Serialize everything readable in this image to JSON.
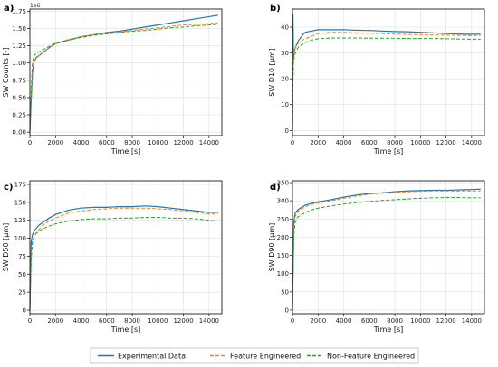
{
  "chart_data": [
    {
      "panel": "a)",
      "type": "line",
      "xlabel": "Time [s]",
      "ylabel": "SW Counts [-]",
      "multiplier": "1e6",
      "xlim": [
        0,
        15000
      ],
      "ylim": [
        -0.05,
        1.78
      ],
      "xticks": [
        0,
        2000,
        4000,
        6000,
        8000,
        10000,
        12000,
        14000
      ],
      "yticks": [
        0.0,
        0.25,
        0.5,
        0.75,
        1.0,
        1.25,
        1.5,
        1.75
      ],
      "ytick_labels": [
        "0.00",
        "0.25",
        "0.50",
        "0.75",
        "1.00",
        "1.25",
        "1.50",
        "1.75"
      ],
      "grid": true,
      "series": [
        {
          "name": "Experimental Data",
          "x": [
            0,
            100,
            200,
            300,
            500,
            800,
            1000,
            1500,
            2000,
            3000,
            4000,
            5000,
            6000,
            7000,
            8000,
            9000,
            10000,
            11000,
            12000,
            13000,
            14000,
            14700
          ],
          "y": [
            0.0,
            0.45,
            0.85,
            1.0,
            1.08,
            1.12,
            1.15,
            1.22,
            1.28,
            1.33,
            1.38,
            1.41,
            1.44,
            1.46,
            1.49,
            1.52,
            1.55,
            1.58,
            1.61,
            1.64,
            1.67,
            1.69
          ]
        },
        {
          "name": "Feature Engineered",
          "x": [
            0,
            100,
            200,
            300,
            500,
            800,
            1000,
            1500,
            2000,
            3000,
            4000,
            5000,
            6000,
            7000,
            8000,
            9000,
            10000,
            11000,
            12000,
            13000,
            14000,
            14700
          ],
          "y": [
            0.0,
            0.5,
            0.88,
            1.0,
            1.07,
            1.12,
            1.15,
            1.22,
            1.28,
            1.34,
            1.38,
            1.41,
            1.43,
            1.45,
            1.47,
            1.49,
            1.51,
            1.53,
            1.55,
            1.56,
            1.57,
            1.58
          ]
        },
        {
          "name": "Non-Feature Engineered",
          "x": [
            0,
            100,
            200,
            300,
            500,
            800,
            1000,
            1500,
            2000,
            3000,
            4000,
            5000,
            6000,
            7000,
            8000,
            9000,
            10000,
            11000,
            12000,
            13000,
            14000,
            14700
          ],
          "y": [
            0.0,
            0.6,
            1.0,
            1.1,
            1.14,
            1.17,
            1.19,
            1.24,
            1.29,
            1.33,
            1.37,
            1.4,
            1.42,
            1.44,
            1.46,
            1.47,
            1.49,
            1.51,
            1.52,
            1.54,
            1.55,
            1.56
          ]
        }
      ]
    },
    {
      "panel": "b)",
      "type": "line",
      "xlabel": "Time [s]",
      "ylabel": "SW D10 [µm]",
      "xlim": [
        0,
        15000
      ],
      "ylim": [
        -2,
        47
      ],
      "xticks": [
        0,
        2000,
        4000,
        6000,
        8000,
        10000,
        12000,
        14000
      ],
      "yticks": [
        0,
        10,
        20,
        30,
        40
      ],
      "ytick_labels": [
        "0",
        "10",
        "20",
        "30",
        "40"
      ],
      "grid": true,
      "series": [
        {
          "name": "Experimental Data",
          "x": [
            0,
            40,
            80,
            150,
            300,
            500,
            800,
            1000,
            1500,
            2000,
            3000,
            4000,
            5000,
            6000,
            7000,
            8000,
            9000,
            10000,
            11000,
            12000,
            13000,
            14000,
            14700
          ],
          "y": [
            0,
            45,
            28,
            31,
            33,
            35,
            37,
            38,
            38.5,
            39,
            39,
            39,
            38.8,
            38.7,
            38.5,
            38.3,
            38.2,
            38.0,
            37.8,
            37.5,
            37.3,
            37.2,
            37.3
          ]
        },
        {
          "name": "Feature Engineered",
          "x": [
            0,
            40,
            80,
            150,
            300,
            500,
            800,
            1000,
            1500,
            2000,
            3000,
            4000,
            5000,
            6000,
            7000,
            8000,
            9000,
            10000,
            11000,
            12000,
            13000,
            14000,
            14700
          ],
          "y": [
            0,
            20,
            28,
            31,
            33,
            34,
            35,
            35.5,
            36.5,
            37.5,
            38,
            38,
            37.8,
            37.7,
            37.5,
            37.3,
            37.2,
            37.1,
            37.0,
            36.9,
            36.8,
            36.7,
            36.8
          ]
        },
        {
          "name": "Non-Feature Engineered",
          "x": [
            0,
            40,
            80,
            150,
            300,
            500,
            800,
            1000,
            1500,
            2000,
            3000,
            4000,
            5000,
            6000,
            7000,
            8000,
            9000,
            10000,
            11000,
            12000,
            13000,
            14000,
            14700
          ],
          "y": [
            0,
            18,
            26,
            29,
            31,
            32.5,
            33.5,
            34,
            35,
            35.5,
            35.8,
            35.8,
            35.8,
            35.7,
            35.7,
            35.7,
            35.6,
            35.6,
            35.6,
            35.5,
            35.4,
            35.3,
            35.3
          ]
        }
      ]
    },
    {
      "panel": "c)",
      "type": "line",
      "xlabel": "Time [s]",
      "ylabel": "SW D50 [µm]",
      "xlim": [
        0,
        15000
      ],
      "ylim": [
        -5,
        180
      ],
      "xticks": [
        0,
        2000,
        4000,
        6000,
        8000,
        10000,
        12000,
        14000
      ],
      "yticks": [
        0,
        25,
        50,
        75,
        100,
        125,
        150,
        175
      ],
      "ytick_labels": [
        "0",
        "25",
        "50",
        "75",
        "100",
        "125",
        "150",
        "175"
      ],
      "grid": true,
      "series": [
        {
          "name": "Experimental Data",
          "x": [
            0,
            100,
            200,
            400,
            700,
            1000,
            1500,
            2000,
            3000,
            4000,
            5000,
            6000,
            7000,
            8000,
            9000,
            10000,
            11000,
            12000,
            13000,
            14000,
            14700
          ],
          "y": [
            0,
            95,
            105,
            112,
            118,
            122,
            128,
            133,
            139,
            142,
            143,
            143,
            144,
            144,
            145,
            144,
            142,
            140,
            138,
            136,
            136
          ]
        },
        {
          "name": "Feature Engineered",
          "x": [
            0,
            100,
            200,
            400,
            700,
            1000,
            1500,
            2000,
            3000,
            4000,
            5000,
            6000,
            7000,
            8000,
            9000,
            10000,
            11000,
            12000,
            13000,
            14000,
            14700
          ],
          "y": [
            0,
            80,
            95,
            105,
            112,
            118,
            124,
            128,
            135,
            138,
            140,
            141,
            142,
            142,
            142,
            141,
            140,
            138,
            136,
            134,
            134
          ]
        },
        {
          "name": "Non-Feature Engineered",
          "x": [
            0,
            100,
            200,
            400,
            700,
            1000,
            1500,
            2000,
            3000,
            4000,
            5000,
            6000,
            7000,
            8000,
            9000,
            10000,
            11000,
            12000,
            13000,
            14000,
            14700
          ],
          "y": [
            0,
            70,
            95,
            105,
            110,
            113,
            117,
            120,
            124,
            126,
            127,
            127,
            128,
            128,
            129,
            129,
            128,
            128,
            127,
            125,
            124
          ]
        }
      ]
    },
    {
      "panel": "d)",
      "type": "line",
      "xlabel": "Time [s]",
      "ylabel": "SW D90 [µm]",
      "xlim": [
        0,
        15000
      ],
      "ylim": [
        -10,
        355
      ],
      "xticks": [
        0,
        2000,
        4000,
        6000,
        8000,
        10000,
        12000,
        14000
      ],
      "yticks": [
        0,
        50,
        100,
        150,
        200,
        250,
        300,
        350
      ],
      "ytick_labels": [
        "0",
        "50",
        "100",
        "150",
        "200",
        "250",
        "300",
        "350"
      ],
      "grid": true,
      "series": [
        {
          "name": "Experimental Data",
          "x": [
            0,
            100,
            200,
            400,
            700,
            1000,
            1500,
            2000,
            3000,
            4000,
            5000,
            6000,
            7000,
            8000,
            9000,
            10000,
            11000,
            12000,
            13000,
            14000,
            14700
          ],
          "y": [
            0,
            240,
            265,
            275,
            282,
            288,
            293,
            297,
            303,
            310,
            316,
            320,
            322,
            325,
            327,
            328,
            329,
            329,
            330,
            331,
            332
          ]
        },
        {
          "name": "Feature Engineered",
          "x": [
            0,
            100,
            200,
            400,
            700,
            1000,
            1500,
            2000,
            3000,
            4000,
            5000,
            6000,
            7000,
            8000,
            9000,
            10000,
            11000,
            12000,
            13000,
            14000,
            14700
          ],
          "y": [
            0,
            220,
            255,
            270,
            278,
            284,
            290,
            294,
            300,
            307,
            313,
            318,
            321,
            323,
            325,
            326,
            327,
            327,
            327,
            327,
            327
          ]
        },
        {
          "name": "Non-Feature Engineered",
          "x": [
            0,
            100,
            200,
            400,
            700,
            1000,
            1500,
            2000,
            3000,
            4000,
            5000,
            6000,
            7000,
            8000,
            9000,
            10000,
            11000,
            12000,
            13000,
            14000,
            14700
          ],
          "y": [
            0,
            200,
            240,
            255,
            262,
            268,
            275,
            280,
            286,
            291,
            295,
            298,
            301,
            303,
            305,
            307,
            308,
            309,
            309,
            308,
            308
          ]
        }
      ]
    }
  ],
  "legend": {
    "placement": "bottom-center",
    "items": [
      {
        "label": "Experimental Data",
        "color": "#1f77b4",
        "style": "solid"
      },
      {
        "label": "Feature Engineered",
        "color": "#ff7f0e",
        "style": "dashed"
      },
      {
        "label": "Non-Feature Engineered",
        "color": "#2ca02c",
        "style": "dashed"
      }
    ]
  },
  "colors": {
    "experimental": "#1f77b4",
    "feature_engineered": "#ff7f0e",
    "non_feature_engineered": "#2ca02c",
    "grid": "#d9d9d9"
  }
}
